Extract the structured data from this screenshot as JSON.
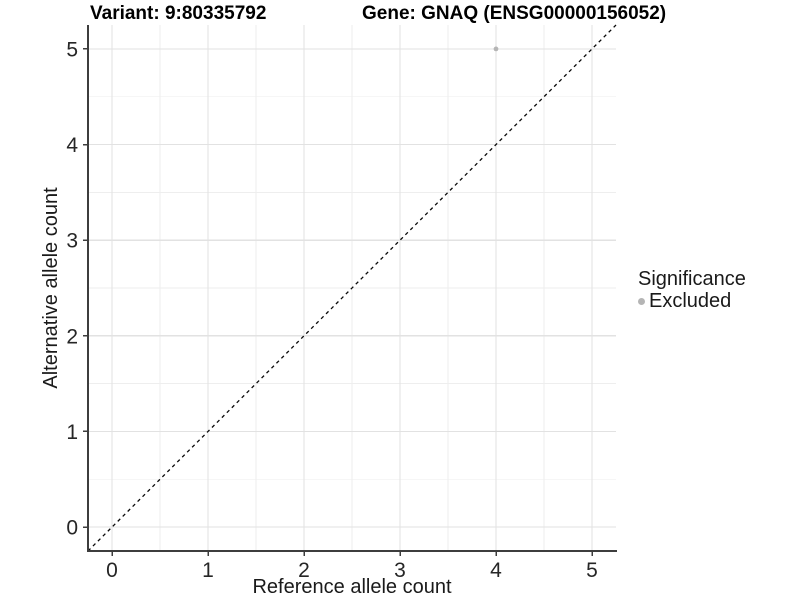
{
  "chart_data": {
    "type": "scatter",
    "title_left": "Variant: 9:80335792",
    "title_right": "Gene: GNAQ (ENSG00000156052)",
    "xlabel": "Reference allele count",
    "ylabel": "Alternative allele count",
    "xlim": [
      -0.25,
      5.25
    ],
    "ylim": [
      -0.25,
      5.25
    ],
    "xticks": [
      0,
      1,
      2,
      3,
      4,
      5
    ],
    "yticks": [
      0,
      1,
      2,
      3,
      4,
      5
    ],
    "grid": {
      "major": true,
      "minor": true
    },
    "series": [
      {
        "name": "Excluded",
        "color": "#b5b5b5",
        "points": [
          {
            "x": 4,
            "y": 5
          }
        ]
      }
    ],
    "reference_line": {
      "slope": 1,
      "intercept": 0,
      "style": "dashed",
      "color": "#0a0a0a"
    },
    "legend": {
      "title": "Significance",
      "position": "right",
      "items": [
        {
          "label": "Excluded",
          "color": "#b5b5b5"
        }
      ]
    }
  },
  "colors": {
    "background": "#ffffff",
    "axis_line": "#3d3d3d",
    "tick_mark": "#3d3d3d",
    "tick_label": "#262626",
    "grid_major": "#e2e2e2",
    "grid_minor": "#eeeeee",
    "point": "#b5b5b5"
  }
}
